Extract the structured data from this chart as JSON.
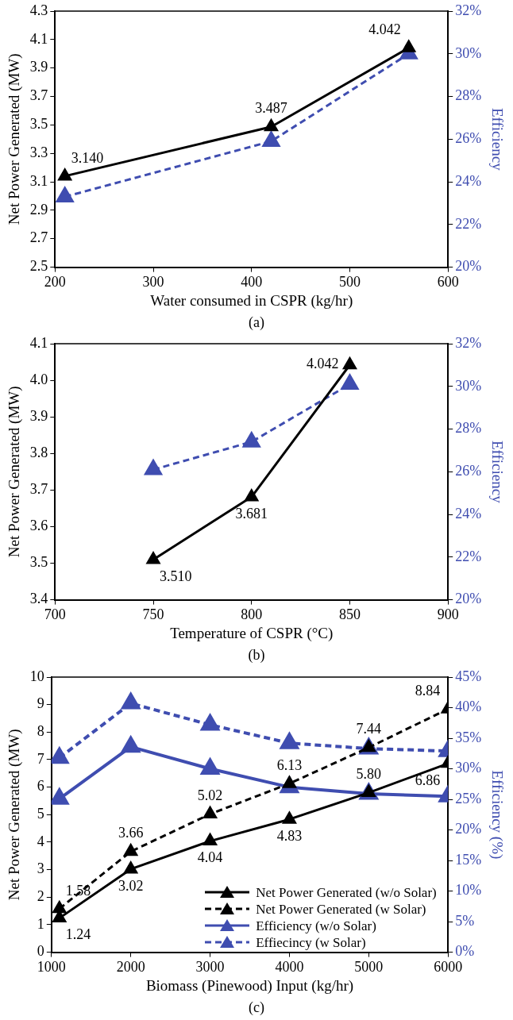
{
  "chart_data": [
    {
      "type": "line",
      "xlabel": "Water consumed in CSPR (kg/hr)",
      "ylabel": "Net Power Generated (MW)",
      "y2label": "Efficiency",
      "annotations": [
        "(a)"
      ],
      "x": [
        210,
        420,
        560
      ],
      "xlim": [
        200,
        600
      ],
      "xticks": [
        200,
        300,
        400,
        500,
        600
      ],
      "ylim": [
        2.5,
        4.3
      ],
      "yticks": [
        2.5,
        2.7,
        2.9,
        3.1,
        3.3,
        3.5,
        3.7,
        3.9,
        4.1,
        4.3
      ],
      "y2lim": [
        20,
        32
      ],
      "y2ticks": [
        {
          "value": 20,
          "label": "20%"
        },
        {
          "value": 22,
          "label": "22%"
        },
        {
          "value": 24,
          "label": "24%"
        },
        {
          "value": 26,
          "label": "26%"
        },
        {
          "value": 28,
          "label": "28%"
        },
        {
          "value": 30,
          "label": "30%"
        },
        {
          "value": 32,
          "label": "32%"
        }
      ],
      "grid": false,
      "marker": "triangle",
      "series": [
        {
          "color": "#000000",
          "values": [
            3.14,
            3.487,
            4.042
          ],
          "value_labels": [
            "3.140",
            "3.487",
            "4.042"
          ],
          "line_style": "solid"
        },
        {
          "color": "#3f4db0",
          "values": [
            23.3,
            25.9,
            30.0
          ],
          "axis": "y2",
          "line_style": "dashed"
        }
      ]
    },
    {
      "type": "line",
      "xlabel": "Temperature of CSPR (°C)",
      "ylabel": "Net Power Generated (MW)",
      "y2label": "Efficiency",
      "annotations": [
        "(b)"
      ],
      "x": [
        750,
        800,
        850
      ],
      "xlim": [
        700,
        900
      ],
      "xticks": [
        700,
        750,
        800,
        850,
        900
      ],
      "ylim": [
        3.4,
        4.1
      ],
      "yticks": [
        3.4,
        3.5,
        3.6,
        3.7,
        3.8,
        3.9,
        {
          "value": 4,
          "label": "4.0"
        },
        4.1
      ],
      "y2lim": [
        20,
        32
      ],
      "y2ticks": [
        {
          "value": 20,
          "label": "20%"
        },
        {
          "value": 22,
          "label": "22%"
        },
        {
          "value": 24,
          "label": "24%"
        },
        {
          "value": 26,
          "label": "26%"
        },
        {
          "value": 28,
          "label": "28%"
        },
        {
          "value": 30,
          "label": "30%"
        },
        {
          "value": 32,
          "label": "32%"
        }
      ],
      "grid": false,
      "marker": "triangle",
      "series": [
        {
          "color": "#000000",
          "values": [
            3.51,
            3.681,
            4.042
          ],
          "value_labels": [
            "3.510",
            "3.681",
            "4.042"
          ],
          "line_style": "solid"
        },
        {
          "color": "#3f4db0",
          "values": [
            26.1,
            27.4,
            30.1
          ],
          "axis": "y2",
          "line_style": "dashed"
        }
      ]
    },
    {
      "type": "line",
      "xlabel": "Biomass (Pinewood) Input (kg/hr)",
      "ylabel": "Net Power Generated (MW)",
      "y2label": "Efficiency (%)",
      "annotations": [
        "(c)"
      ],
      "x": [
        1100,
        2000,
        3000,
        4000,
        5000,
        6000
      ],
      "xlim": [
        1000,
        6000
      ],
      "xticks": [
        1000,
        2000,
        3000,
        4000,
        5000,
        6000
      ],
      "ylim": [
        0,
        10
      ],
      "yticks": [
        0,
        1,
        2,
        3,
        4,
        5,
        6,
        7,
        8,
        9,
        10
      ],
      "y2lim": [
        0,
        45
      ],
      "y2ticks": [
        {
          "value": 0,
          "label": "0%"
        },
        {
          "value": 5,
          "label": "5%"
        },
        {
          "value": 10,
          "label": "10%"
        },
        {
          "value": 15,
          "label": "15%"
        },
        {
          "value": 20,
          "label": "20%"
        },
        {
          "value": 25,
          "label": "25%"
        },
        {
          "value": 30,
          "label": "30%"
        },
        {
          "value": 35,
          "label": "35%"
        },
        {
          "value": 40,
          "label": "40%"
        },
        {
          "value": 45,
          "label": "45%"
        }
      ],
      "grid": false,
      "marker": "triangle",
      "legend": "bottom right",
      "series": [
        {
          "name": "Net Power Generated (w/o Solar)",
          "color": "#000000",
          "values": [
            1.24,
            3.02,
            4.04,
            4.83,
            5.8,
            6.86
          ],
          "value_labels": [
            "1.24",
            "3.02",
            "4.04",
            "4.83",
            "5.80",
            "6.86"
          ],
          "line_style": "solid"
        },
        {
          "name": "Net Power Generated (w Solar)",
          "color": "#000000",
          "values": [
            1.58,
            3.66,
            5.02,
            6.13,
            7.44,
            8.84
          ],
          "value_labels": [
            "1.58",
            "3.66",
            "5.02",
            "6.13",
            "7.44",
            "8.84"
          ],
          "line_style": "dashed"
        },
        {
          "name": "Efficiency (w/o Solar)",
          "color": "#3f4db0",
          "values": [
            25.1,
            33.6,
            30.0,
            27.0,
            25.9,
            25.5
          ],
          "axis": "y2",
          "line_style": "solid"
        },
        {
          "name": "Effiecincy (w Solar)",
          "color": "#3f4db0",
          "values": [
            31.8,
            40.7,
            37.2,
            34.2,
            33.3,
            32.9
          ],
          "axis": "y2",
          "line_style": "dashed"
        }
      ]
    }
  ]
}
